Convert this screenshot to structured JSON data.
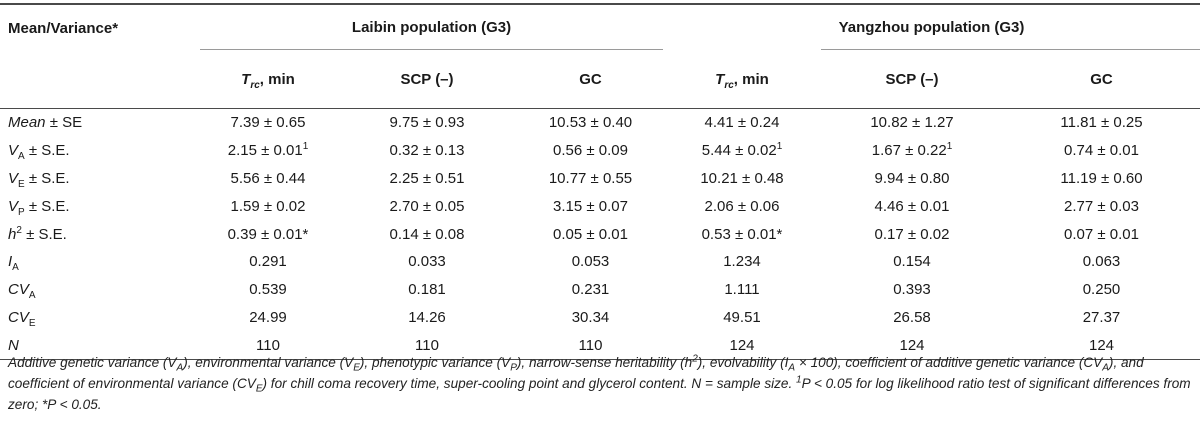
{
  "table": {
    "corner_header": "Mean/Variance*",
    "groups": [
      "Laibin population (G3)",
      "Yangzhou population (G3)"
    ],
    "columns": {
      "trc_main": "T",
      "trc_sub": "rc",
      "trc_unit": ", min",
      "scp": "SCP (–)",
      "gc": "GC"
    },
    "rows": [
      {
        "label": {
          "main": "Mean",
          "rest": " ± SE"
        },
        "cells": [
          "7.39 ± 0.65",
          "9.75 ± 0.93",
          "10.53 ± 0.40",
          "4.41 ± 0.24",
          "10.82 ± 1.27",
          "11.81 ± 0.25"
        ],
        "marks": [
          "",
          "",
          "",
          "",
          "",
          ""
        ]
      },
      {
        "label": {
          "main": "V",
          "sub": "A",
          "rest": " ± S.E."
        },
        "cells": [
          "2.15 ± 0.01",
          "0.32 ± 0.13",
          "0.56 ± 0.09",
          "5.44 ± 0.02",
          "1.67 ± 0.22",
          "0.74 ± 0.01"
        ],
        "marks": [
          "1",
          "",
          "",
          "1",
          "1",
          ""
        ]
      },
      {
        "label": {
          "main": "V",
          "sub": "E",
          "rest": " ± S.E."
        },
        "cells": [
          "5.56 ± 0.44",
          "2.25 ± 0.51",
          "10.77 ± 0.55",
          "10.21 ± 0.48",
          "9.94 ± 0.80",
          "11.19 ± 0.60"
        ],
        "marks": [
          "",
          "",
          "",
          "",
          "",
          ""
        ]
      },
      {
        "label": {
          "main": "V",
          "sub": "P",
          "rest": " ± S.E."
        },
        "cells": [
          "1.59 ± 0.02",
          "2.70 ± 0.05",
          "3.15 ± 0.07",
          "2.06 ± 0.06",
          "4.46 ± 0.01",
          "2.77 ± 0.03"
        ],
        "marks": [
          "",
          "",
          "",
          "",
          "",
          ""
        ]
      },
      {
        "label": {
          "main": "h",
          "sup": "2",
          "rest": " ± S.E."
        },
        "cells": [
          "0.39 ± 0.01*",
          "0.14 ± 0.08",
          "0.05 ± 0.01",
          "0.53 ± 0.01*",
          "0.17 ± 0.02",
          "0.07 ± 0.01"
        ],
        "marks": [
          "",
          "",
          "",
          "",
          "",
          ""
        ]
      },
      {
        "label": {
          "main": "I",
          "sub": "A",
          "rest": ""
        },
        "cells": [
          "0.291",
          "0.033",
          "0.053",
          "1.234",
          "0.154",
          "0.063"
        ],
        "marks": [
          "",
          "",
          "",
          "",
          "",
          ""
        ]
      },
      {
        "label": {
          "main": "CV",
          "sub": "A",
          "rest": ""
        },
        "cells": [
          "0.539",
          "0.181",
          "0.231",
          "1.111",
          "0.393",
          "0.250"
        ],
        "marks": [
          "",
          "",
          "",
          "",
          "",
          ""
        ]
      },
      {
        "label": {
          "main": "CV",
          "sub": "E",
          "rest": ""
        },
        "cells": [
          "24.99",
          "14.26",
          "30.34",
          "49.51",
          "26.58",
          "27.37"
        ],
        "marks": [
          "",
          "",
          "",
          "",
          "",
          ""
        ]
      },
      {
        "label": {
          "main": "N",
          "rest": ""
        },
        "cells": [
          "110",
          "110",
          "110",
          "124",
          "124",
          "124"
        ],
        "marks": [
          "",
          "",
          "",
          "",
          "",
          ""
        ]
      }
    ]
  },
  "footnote": {
    "p1": "Additive genetic variance (V",
    "p1_sub": "A",
    "p2": "), environmental variance (V",
    "p2_sub": "E",
    "p3": "), phenotypic variance (V",
    "p3_sub": "P",
    "p4": "), narrow-sense heritability (h",
    "p4_sup": "2",
    "p5": "), evolvability (I",
    "p5_sub": "A",
    "p6": " × 100), coefficient of additive genetic variance (CV",
    "p6_sub": "A",
    "p7": "), and coefficient of environmental variance (CV",
    "p7_sub": "E",
    "p8": ") for chill coma recovery time, super-cooling point and glycerol content. N = sample size. ",
    "p9_sup": "1",
    "p9": "P < 0.05 for log likelihood ratio test of significant differences from zero; *P < 0.05."
  }
}
